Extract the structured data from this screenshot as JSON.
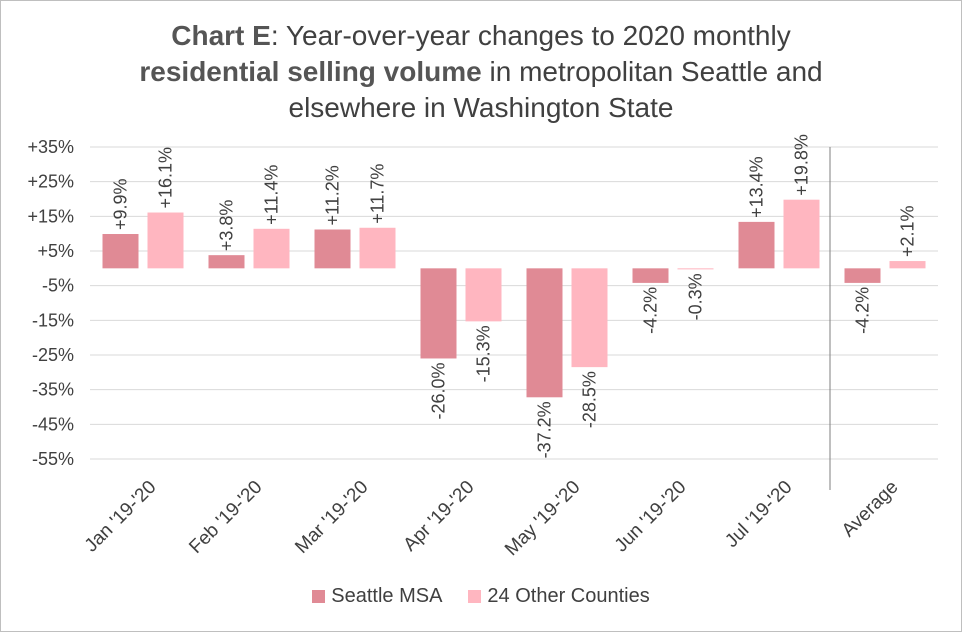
{
  "title": {
    "lead_bold": "Chart E",
    "lead_rest": ": Year-over-year changes to 2020 monthly",
    "line2_bold": "residential selling volume",
    "line2_rest": " in metropolitan Seattle and",
    "line3": "elsewhere in Washington State"
  },
  "colors": {
    "seattle": "#e08a95",
    "other": "#ffb6c0",
    "grid": "#d9d9d9",
    "text": "#404040",
    "separator": "#7f7f7f"
  },
  "chart_data": {
    "type": "bar",
    "categories": [
      "Jan '19-'20",
      "Feb '19-'20",
      "Mar '19-'20",
      "Apr '19-'20",
      "May '19-'20",
      "Jun '19-'20",
      "Jul '19-'20",
      "Average"
    ],
    "series": [
      {
        "name": "Seattle MSA",
        "values": [
          9.9,
          3.8,
          11.2,
          -26.0,
          -37.2,
          -4.2,
          13.4,
          -4.2
        ],
        "labels": [
          "+9.9%",
          "+3.8%",
          "+11.2%",
          "-26.0%",
          "-37.2%",
          "-4.2%",
          "+13.4%",
          "-4.2%"
        ]
      },
      {
        "name": "24 Other Counties",
        "values": [
          16.1,
          11.4,
          11.7,
          -15.3,
          -28.5,
          -0.3,
          19.8,
          2.1
        ],
        "labels": [
          "+16.1%",
          "+11.4%",
          "+11.7%",
          "-15.3%",
          "-28.5%",
          "-0.3%",
          "+19.8%",
          "+2.1%"
        ]
      }
    ],
    "y_ticks": [
      35,
      25,
      15,
      5,
      -5,
      -15,
      -25,
      -35,
      -45,
      -55
    ],
    "y_tick_labels": [
      "+35%",
      "+25%",
      "+15%",
      "+5%",
      "-5%",
      "-15%",
      "-25%",
      "-35%",
      "-45%",
      "-55%"
    ],
    "ylim": [
      -55,
      35
    ],
    "grid": true,
    "separator_before": "Average",
    "legend_position": "bottom"
  },
  "legend": {
    "items": [
      {
        "label": "Seattle MSA"
      },
      {
        "label": "24 Other Counties"
      }
    ]
  }
}
